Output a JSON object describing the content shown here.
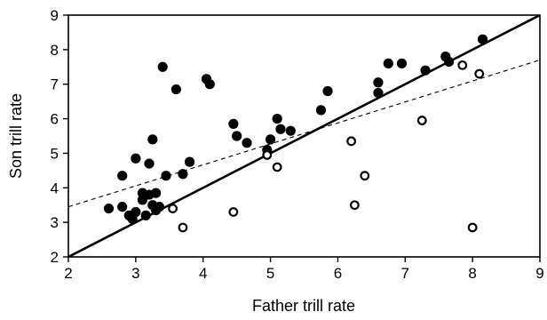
{
  "chart_data": {
    "type": "scatter",
    "xlabel": "Father trill rate",
    "ylabel": "Son trill rate",
    "xlim": [
      2,
      9
    ],
    "ylim": [
      2,
      9
    ],
    "x_ticks": [
      "2",
      "3",
      "4",
      "5",
      "6",
      "7",
      "8",
      "9"
    ],
    "y_ticks": [
      "2",
      "3",
      "4",
      "5",
      "6",
      "7",
      "8",
      "9"
    ],
    "grid": false,
    "series": [
      {
        "marker": "filled-circle",
        "color": "#000000",
        "points": [
          [
            2.6,
            3.4
          ],
          [
            2.8,
            4.35
          ],
          [
            2.8,
            3.45
          ],
          [
            2.9,
            3.2
          ],
          [
            2.95,
            3.1
          ],
          [
            3.0,
            4.85
          ],
          [
            3.0,
            3.3
          ],
          [
            3.1,
            3.85
          ],
          [
            3.1,
            3.65
          ],
          [
            3.15,
            3.2
          ],
          [
            3.2,
            3.8
          ],
          [
            3.2,
            4.7
          ],
          [
            3.25,
            5.4
          ],
          [
            3.25,
            3.5
          ],
          [
            3.3,
            3.85
          ],
          [
            3.3,
            3.35
          ],
          [
            3.35,
            3.45
          ],
          [
            3.4,
            7.5
          ],
          [
            3.45,
            4.35
          ],
          [
            3.6,
            6.85
          ],
          [
            3.7,
            4.4
          ],
          [
            3.8,
            4.75
          ],
          [
            4.05,
            7.15
          ],
          [
            4.1,
            7.0
          ],
          [
            4.45,
            5.85
          ],
          [
            4.5,
            5.5
          ],
          [
            4.65,
            5.3
          ],
          [
            4.95,
            5.1
          ],
          [
            5.0,
            5.4
          ],
          [
            5.1,
            6.0
          ],
          [
            5.15,
            5.7
          ],
          [
            5.3,
            5.65
          ],
          [
            5.75,
            6.25
          ],
          [
            5.85,
            6.8
          ],
          [
            6.6,
            7.05
          ],
          [
            6.6,
            6.75
          ],
          [
            6.75,
            7.6
          ],
          [
            6.95,
            7.6
          ],
          [
            7.3,
            7.4
          ],
          [
            7.6,
            7.8
          ],
          [
            7.65,
            7.65
          ],
          [
            8.15,
            8.3
          ]
        ]
      },
      {
        "marker": "open-circle",
        "color": "#000000",
        "points": [
          [
            3.55,
            3.4
          ],
          [
            3.7,
            2.85
          ],
          [
            4.45,
            3.3
          ],
          [
            4.95,
            4.95
          ],
          [
            5.1,
            4.6
          ],
          [
            6.2,
            5.35
          ],
          [
            6.25,
            3.5
          ],
          [
            6.4,
            4.35
          ],
          [
            7.25,
            5.95
          ],
          [
            7.85,
            7.55
          ],
          [
            8.0,
            2.85
          ],
          [
            8.1,
            7.3
          ]
        ]
      }
    ],
    "lines": [
      {
        "style": "solid",
        "color": "#000000",
        "from": [
          2,
          2
        ],
        "to": [
          9,
          9
        ]
      },
      {
        "style": "dashed",
        "color": "#000000",
        "from": [
          2,
          3.45
        ],
        "to": [
          9,
          7.7
        ]
      }
    ]
  }
}
